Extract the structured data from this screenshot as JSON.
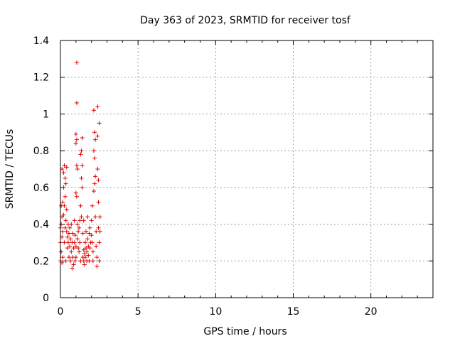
{
  "chart_data": {
    "type": "scatter",
    "title": "Day 363 of 2023, SRMTID for receiver tosf",
    "xlabel": "GPS time / hours",
    "ylabel": "SRMTID / TECUs",
    "xlim": [
      0,
      24
    ],
    "ylim": [
      0,
      1.4
    ],
    "x_ticks": [
      0,
      5,
      10,
      15,
      20
    ],
    "x_tick_labels": [
      "0",
      "5",
      "10",
      "15",
      "20"
    ],
    "y_ticks": [
      0,
      0.2,
      0.4,
      0.6,
      0.8,
      1.0,
      1.2,
      1.4
    ],
    "y_tick_labels": [
      "0",
      "0.2",
      "0.4",
      "0.6",
      "0.8",
      "1",
      "1.2",
      "1.4"
    ],
    "grid": true,
    "marker": "+",
    "color": "#e00000",
    "series": [
      {
        "name": "SRMTID",
        "points": [
          [
            0.0,
            0.2
          ],
          [
            0.0,
            0.3
          ],
          [
            0.0,
            0.38
          ],
          [
            0.05,
            0.25
          ],
          [
            0.05,
            0.4
          ],
          [
            0.05,
            0.5
          ],
          [
            0.1,
            0.19
          ],
          [
            0.1,
            0.33
          ],
          [
            0.1,
            0.44
          ],
          [
            0.1,
            0.7
          ],
          [
            0.15,
            0.22
          ],
          [
            0.15,
            0.36
          ],
          [
            0.15,
            0.52
          ],
          [
            0.2,
            0.45
          ],
          [
            0.2,
            0.6
          ],
          [
            0.2,
            0.68
          ],
          [
            0.25,
            0.3
          ],
          [
            0.25,
            0.5
          ],
          [
            0.25,
            0.72
          ],
          [
            0.3,
            0.38
          ],
          [
            0.3,
            0.55
          ],
          [
            0.3,
            0.65
          ],
          [
            0.35,
            0.2
          ],
          [
            0.35,
            0.42
          ],
          [
            0.35,
            0.62
          ],
          [
            0.4,
            0.36
          ],
          [
            0.4,
            0.48
          ],
          [
            0.4,
            0.71
          ],
          [
            0.45,
            0.33
          ],
          [
            0.45,
            0.27
          ],
          [
            0.5,
            0.4
          ],
          [
            0.5,
            0.3
          ],
          [
            0.55,
            0.22
          ],
          [
            0.55,
            0.35
          ],
          [
            0.6,
            0.28
          ],
          [
            0.6,
            0.38
          ],
          [
            0.65,
            0.2
          ],
          [
            0.65,
            0.32
          ],
          [
            0.7,
            0.25
          ],
          [
            0.7,
            0.4
          ],
          [
            0.75,
            0.16
          ],
          [
            0.75,
            0.3
          ],
          [
            0.8,
            0.22
          ],
          [
            0.8,
            0.35
          ],
          [
            0.85,
            0.18
          ],
          [
            0.85,
            0.27
          ],
          [
            0.9,
            0.3
          ],
          [
            0.9,
            0.42
          ],
          [
            0.95,
            0.2
          ],
          [
            0.95,
            0.34
          ],
          [
            1.0,
            0.89
          ],
          [
            1.0,
            0.84
          ],
          [
            1.0,
            0.57
          ],
          [
            1.0,
            0.28
          ],
          [
            1.0,
            0.22
          ],
          [
            1.05,
            1.28
          ],
          [
            1.05,
            1.06
          ],
          [
            1.05,
            0.86
          ],
          [
            1.05,
            0.72
          ],
          [
            1.05,
            0.55
          ],
          [
            1.1,
            0.7
          ],
          [
            1.1,
            0.4
          ],
          [
            1.1,
            0.32
          ],
          [
            1.15,
            0.27
          ],
          [
            1.15,
            0.36
          ],
          [
            1.2,
            0.25
          ],
          [
            1.2,
            0.38
          ],
          [
            1.25,
            0.3
          ],
          [
            1.25,
            0.42
          ],
          [
            1.3,
            0.2
          ],
          [
            1.3,
            0.78
          ],
          [
            1.3,
            0.5
          ],
          [
            1.35,
            0.8
          ],
          [
            1.35,
            0.65
          ],
          [
            1.35,
            0.44
          ],
          [
            1.4,
            0.87
          ],
          [
            1.4,
            0.72
          ],
          [
            1.4,
            0.6
          ],
          [
            1.45,
            0.35
          ],
          [
            1.45,
            0.22
          ],
          [
            1.5,
            0.2
          ],
          [
            1.5,
            0.26
          ],
          [
            1.5,
            0.42
          ],
          [
            1.55,
            0.24
          ],
          [
            1.55,
            0.18
          ],
          [
            1.6,
            0.3
          ],
          [
            1.6,
            0.22
          ],
          [
            1.65,
            0.27
          ],
          [
            1.65,
            0.36
          ],
          [
            1.7,
            0.2
          ],
          [
            1.7,
            0.25
          ],
          [
            1.75,
            0.32
          ],
          [
            1.75,
            0.44
          ],
          [
            1.8,
            0.23
          ],
          [
            1.8,
            0.28
          ],
          [
            1.85,
            0.2
          ],
          [
            1.85,
            0.35
          ],
          [
            1.9,
            0.38
          ],
          [
            1.9,
            0.27
          ],
          [
            1.95,
            0.3
          ],
          [
            2.0,
            0.42
          ],
          [
            2.0,
            0.34
          ],
          [
            2.05,
            0.5
          ],
          [
            2.05,
            0.3
          ],
          [
            2.1,
            0.25
          ],
          [
            2.1,
            0.2
          ],
          [
            2.15,
            1.02
          ],
          [
            2.15,
            0.8
          ],
          [
            2.15,
            0.58
          ],
          [
            2.2,
            0.9
          ],
          [
            2.2,
            0.76
          ],
          [
            2.2,
            0.62
          ],
          [
            2.25,
            0.86
          ],
          [
            2.25,
            0.66
          ],
          [
            2.25,
            0.44
          ],
          [
            2.3,
            0.36
          ],
          [
            2.3,
            0.28
          ],
          [
            2.35,
            0.22
          ],
          [
            2.35,
            0.17
          ],
          [
            2.4,
            1.04
          ],
          [
            2.4,
            0.88
          ],
          [
            2.4,
            0.7
          ],
          [
            2.45,
            0.64
          ],
          [
            2.45,
            0.52
          ],
          [
            2.45,
            0.38
          ],
          [
            2.5,
            0.95
          ],
          [
            2.5,
            0.3
          ],
          [
            2.5,
            0.2
          ],
          [
            2.55,
            0.44
          ],
          [
            2.55,
            0.36
          ]
        ]
      }
    ]
  }
}
